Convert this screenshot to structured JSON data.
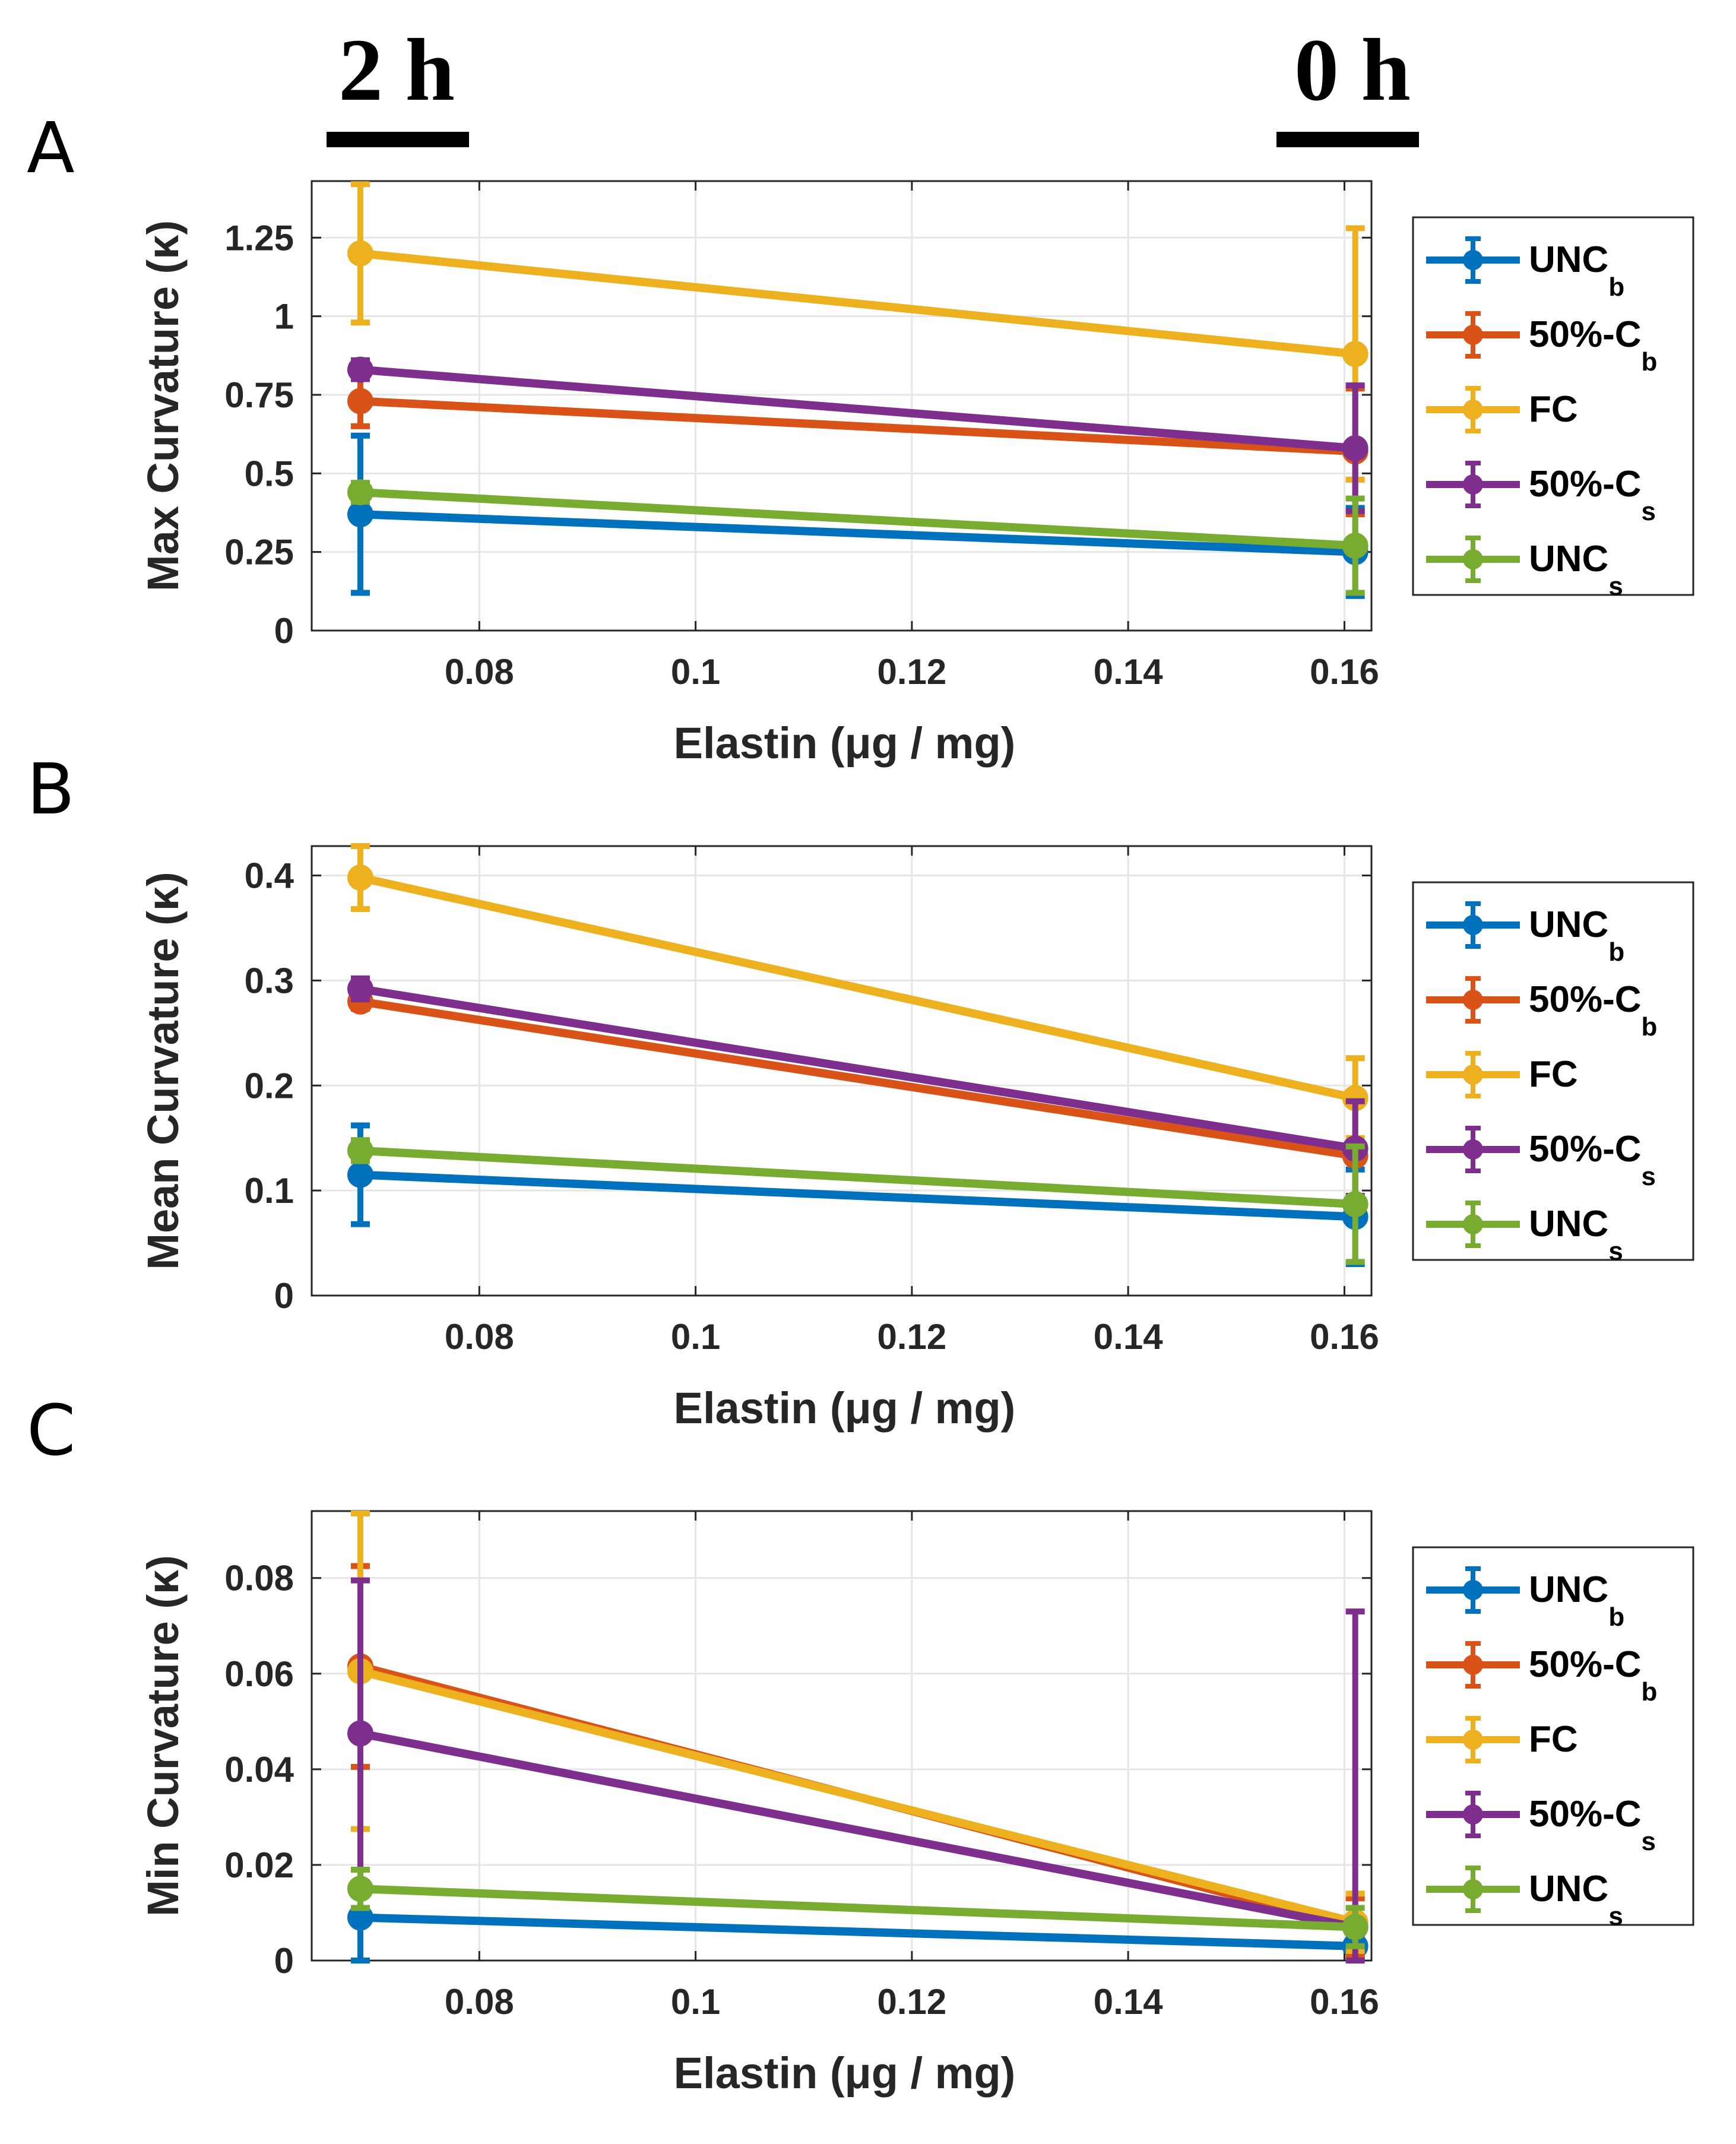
{
  "time_markers": {
    "left": "2 h",
    "right": "0 h"
  },
  "legend_entries": [
    {
      "base": "UNC",
      "sub": "b"
    },
    {
      "base": "50%-C",
      "sub": "b"
    },
    {
      "base": "FC",
      "sub": ""
    },
    {
      "base": "50%-C",
      "sub": "s"
    },
    {
      "base": "UNC",
      "sub": "s"
    }
  ],
  "colors": {
    "UNC_b": "#0072BD",
    "50%-C_b": "#D95319",
    "FC": "#EDB120",
    "50%-C_s": "#7E2F8E",
    "UNC_s": "#77AC30"
  },
  "chart_data": [
    {
      "panel": "A",
      "type": "line",
      "xlabel": "Elastin (μg / mg)",
      "ylabel": "Max Curvature (κ)",
      "xlim": [
        0.0645,
        0.1625
      ],
      "ylim": [
        0,
        1.43
      ],
      "xticks": [
        0.08,
        0.1,
        0.12,
        0.14,
        0.16
      ],
      "xtick_labels": [
        "0.08",
        "0.1",
        "0.12",
        "0.14",
        "0.16"
      ],
      "yticks": [
        0,
        0.25,
        0.5,
        0.75,
        1,
        1.25
      ],
      "ytick_labels": [
        "0",
        "0.25",
        "0.5",
        "0.75",
        "1",
        "1.25"
      ],
      "x": [
        0.069,
        0.161
      ],
      "series": [
        {
          "name": "UNC_b",
          "values": [
            0.37,
            0.25
          ],
          "errors": [
            0.25,
            0.14
          ]
        },
        {
          "name": "50%-C_b",
          "values": [
            0.73,
            0.57
          ],
          "errors": [
            0.08,
            0.2
          ]
        },
        {
          "name": "FC",
          "values": [
            1.2,
            0.88
          ],
          "errors": [
            0.22,
            0.4
          ]
        },
        {
          "name": "50%-C_s",
          "values": [
            0.83,
            0.58
          ],
          "errors": [
            0.03,
            0.2
          ]
        },
        {
          "name": "UNC_s",
          "values": [
            0.44,
            0.27
          ],
          "errors": [
            0.03,
            0.15
          ]
        }
      ]
    },
    {
      "panel": "B",
      "type": "line",
      "xlabel": "Elastin (μg / mg)",
      "ylabel": "Mean Curvature (κ)",
      "xlim": [
        0.0645,
        0.1625
      ],
      "ylim": [
        0,
        0.428
      ],
      "xticks": [
        0.08,
        0.1,
        0.12,
        0.14,
        0.16
      ],
      "xtick_labels": [
        "0.08",
        "0.1",
        "0.12",
        "0.14",
        "0.16"
      ],
      "yticks": [
        0,
        0.1,
        0.2,
        0.3,
        0.4
      ],
      "ytick_labels": [
        "0",
        "0.1",
        "0.2",
        "0.3",
        "0.4"
      ],
      "x": [
        0.069,
        0.161
      ],
      "series": [
        {
          "name": "UNC_b",
          "values": [
            0.115,
            0.075
          ],
          "errors": [
            0.047,
            0.045
          ]
        },
        {
          "name": "50%-C_b",
          "values": [
            0.28,
            0.133
          ],
          "errors": [
            0.007,
            0.05
          ]
        },
        {
          "name": "FC",
          "values": [
            0.398,
            0.188
          ],
          "errors": [
            0.03,
            0.038
          ]
        },
        {
          "name": "50%-C_s",
          "values": [
            0.292,
            0.14
          ],
          "errors": [
            0.01,
            0.045
          ]
        },
        {
          "name": "UNC_s",
          "values": [
            0.138,
            0.087
          ],
          "errors": [
            0.01,
            0.055
          ]
        }
      ]
    },
    {
      "panel": "C",
      "type": "line",
      "xlabel": "Elastin (μg / mg)",
      "ylabel": "Min Curvature (κ)",
      "xlim": [
        0.0645,
        0.1625
      ],
      "ylim": [
        0,
        0.094
      ],
      "xticks": [
        0.08,
        0.1,
        0.12,
        0.14,
        0.16
      ],
      "xtick_labels": [
        "0.08",
        "0.1",
        "0.12",
        "0.14",
        "0.16"
      ],
      "yticks": [
        0,
        0.02,
        0.04,
        0.06,
        0.08
      ],
      "ytick_labels": [
        "0",
        "0.02",
        "0.04",
        "0.06",
        "0.08"
      ],
      "x": [
        0.069,
        0.161
      ],
      "series": [
        {
          "name": "UNC_b",
          "values": [
            0.009,
            0.003
          ],
          "errors": [
            0.01,
            0.002
          ]
        },
        {
          "name": "50%-C_b",
          "values": [
            0.0615,
            0.007
          ],
          "errors": [
            0.021,
            0.006
          ]
        },
        {
          "name": "FC",
          "values": [
            0.0605,
            0.008
          ],
          "errors": [
            0.033,
            0.006
          ]
        },
        {
          "name": "50%-C_s",
          "values": [
            0.0475,
            0.007
          ],
          "errors": [
            0.032,
            0.066
          ]
        },
        {
          "name": "UNC_s",
          "values": [
            0.015,
            0.007
          ],
          "errors": [
            0.004,
            0.004
          ]
        }
      ]
    }
  ]
}
